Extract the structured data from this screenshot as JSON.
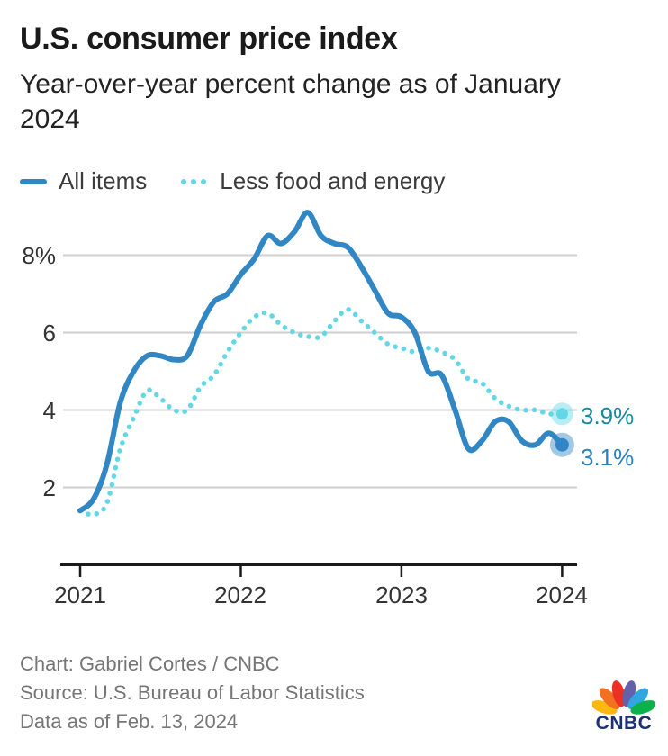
{
  "header": {
    "title": "U.S. consumer price index",
    "subtitle": "Year-over-year percent change as of January 2024"
  },
  "legend": [
    {
      "label": "All items",
      "color": "#3187C4",
      "style": "solid"
    },
    {
      "label": "Less food and energy",
      "color": "#63D7E6",
      "style": "dotted"
    }
  ],
  "chart_data": {
    "type": "line",
    "title": "U.S. consumer price index",
    "subtitle": "Year-over-year percent change as of January 2024",
    "x_unit": "month",
    "x": [
      "2021-01",
      "2021-02",
      "2021-03",
      "2021-04",
      "2021-05",
      "2021-06",
      "2021-07",
      "2021-08",
      "2021-09",
      "2021-10",
      "2021-11",
      "2021-12",
      "2022-01",
      "2022-02",
      "2022-03",
      "2022-04",
      "2022-05",
      "2022-06",
      "2022-07",
      "2022-08",
      "2022-09",
      "2022-10",
      "2022-11",
      "2022-12",
      "2023-01",
      "2023-02",
      "2023-03",
      "2023-04",
      "2023-05",
      "2023-06",
      "2023-07",
      "2023-08",
      "2023-09",
      "2023-10",
      "2023-11",
      "2023-12",
      "2024-01"
    ],
    "series": [
      {
        "name": "All items",
        "color": "#3187C4",
        "line": "solid",
        "end_label": "3.1%",
        "end_label_color": "#2B80BE",
        "values": [
          1.4,
          1.7,
          2.6,
          4.2,
          5.0,
          5.4,
          5.4,
          5.3,
          5.4,
          6.2,
          6.8,
          7.0,
          7.5,
          7.9,
          8.5,
          8.3,
          8.6,
          9.1,
          8.5,
          8.3,
          8.2,
          7.7,
          7.1,
          6.5,
          6.4,
          6.0,
          5.0,
          4.9,
          4.0,
          3.0,
          3.2,
          3.7,
          3.7,
          3.2,
          3.1,
          3.4,
          3.1
        ]
      },
      {
        "name": "Less food and energy",
        "color": "#63D7E6",
        "line": "dotted",
        "end_label": "3.9%",
        "end_label_color": "#168BA0",
        "values": [
          1.4,
          1.3,
          1.6,
          3.0,
          3.8,
          4.5,
          4.3,
          4.0,
          4.0,
          4.6,
          4.9,
          5.5,
          6.0,
          6.4,
          6.5,
          6.2,
          6.0,
          5.9,
          5.9,
          6.3,
          6.6,
          6.3,
          6.0,
          5.7,
          5.6,
          5.5,
          5.6,
          5.5,
          5.3,
          4.8,
          4.7,
          4.3,
          4.1,
          4.0,
          4.0,
          3.9,
          3.9
        ]
      }
    ],
    "yticks": [
      {
        "value": 8,
        "label": "8%"
      },
      {
        "value": 6,
        "label": "6"
      },
      {
        "value": 4,
        "label": "4"
      },
      {
        "value": 2,
        "label": "2"
      }
    ],
    "xticks": [
      {
        "month_index": 0,
        "label": "2021"
      },
      {
        "month_index": 12,
        "label": "2022"
      },
      {
        "month_index": 24,
        "label": "2023"
      },
      {
        "month_index": 36,
        "label": "2024"
      }
    ],
    "ylim": [
      0,
      9.5
    ],
    "grid": "horizontal",
    "grid_color": "#CFCFCF",
    "axis_color": "#1A1A1A",
    "legend_position": "top-left"
  },
  "footer": {
    "credit": "Chart: Gabriel Cortes / CNBC",
    "source": "Source: U.S. Bureau of Labor Statistics",
    "as_of": "Data as of Feb. 13, 2024"
  },
  "logo": {
    "wordmark": "CNBC",
    "wordmark_color": "#1B3173",
    "feather_colors": [
      "#FCB711",
      "#F37021",
      "#EE3024",
      "#6460AA",
      "#2FA8E0",
      "#0DB14B"
    ]
  }
}
